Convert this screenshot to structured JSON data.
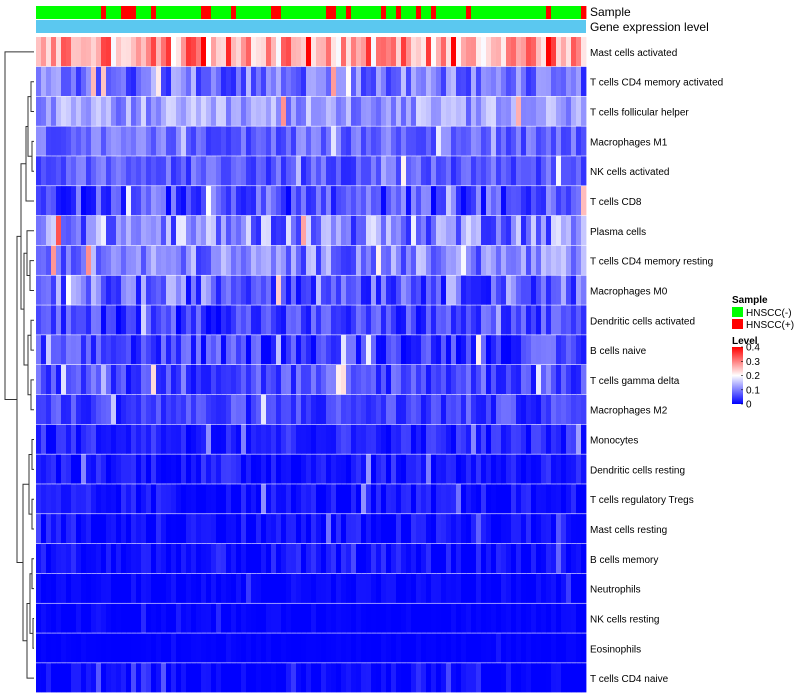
{
  "chart_data": {
    "type": "heatmap",
    "title": "",
    "annotation_tracks": [
      {
        "label": "Sample",
        "kind": "categorical"
      },
      {
        "label": "Gene expression level",
        "kind": "constant",
        "color": "#5BC8F0"
      }
    ],
    "rows": [
      {
        "label": "Mast cells activated",
        "mean": 0.28,
        "spread": 0.09
      },
      {
        "label": "T cells CD4 memory activated",
        "mean": 0.09,
        "spread": 0.06
      },
      {
        "label": "T cells follicular helper",
        "mean": 0.12,
        "spread": 0.05
      },
      {
        "label": "Macrophages M1",
        "mean": 0.08,
        "spread": 0.04
      },
      {
        "label": "NK cells activated",
        "mean": 0.07,
        "spread": 0.04
      },
      {
        "label": "T cells CD8",
        "mean": 0.06,
        "spread": 0.06
      },
      {
        "label": "Plasma cells",
        "mean": 0.11,
        "spread": 0.08
      },
      {
        "label": "T cells CD4 memory resting",
        "mean": 0.1,
        "spread": 0.06
      },
      {
        "label": "Macrophages M0",
        "mean": 0.08,
        "spread": 0.07
      },
      {
        "label": "Dendritic cells activated",
        "mean": 0.05,
        "spread": 0.05
      },
      {
        "label": "B cells naive",
        "mean": 0.05,
        "spread": 0.05
      },
      {
        "label": "T cells gamma delta",
        "mean": 0.06,
        "spread": 0.05
      },
      {
        "label": "Macrophages M2",
        "mean": 0.05,
        "spread": 0.04
      },
      {
        "label": "Monocytes",
        "mean": 0.03,
        "spread": 0.03
      },
      {
        "label": "Dendritic cells resting",
        "mean": 0.02,
        "spread": 0.03
      },
      {
        "label": "T cells regulatory  Tregs",
        "mean": 0.01,
        "spread": 0.03
      },
      {
        "label": "Mast cells resting",
        "mean": 0.01,
        "spread": 0.03
      },
      {
        "label": "B cells memory",
        "mean": 0.01,
        "spread": 0.03
      },
      {
        "label": "Neutrophils",
        "mean": 0.003,
        "spread": 0.015
      },
      {
        "label": "NK cells resting",
        "mean": 0.002,
        "spread": 0.01
      },
      {
        "label": "Eosinophils",
        "mean": 0.001,
        "spread": 0.005
      },
      {
        "label": "T cells CD4 naive",
        "mean": 0.004,
        "spread": 0.02
      }
    ],
    "n_columns": 110,
    "color_scale": {
      "title": "Level",
      "min": 0,
      "max": 0.4,
      "ticks": [
        0,
        0.1,
        0.2,
        0.3,
        0.4
      ],
      "tick_labels": [
        "0",
        "0.1",
        "0.2",
        "0.3",
        "0.4"
      ],
      "colors": [
        "#0000FF",
        "#FFFFFF",
        "#FF0000"
      ]
    },
    "legend": {
      "title": "Sample",
      "position": "right",
      "entries": [
        {
          "label": "HNSCC(-)",
          "color": "#00FF00"
        },
        {
          "label": "HNSCC(+)",
          "color": "#FF0000"
        }
      ]
    },
    "dendrogram": "rows"
  }
}
